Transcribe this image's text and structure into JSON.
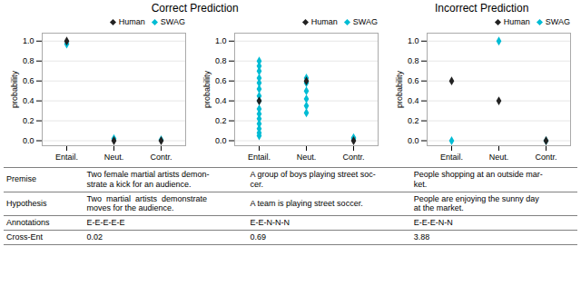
{
  "chart_data": [
    {
      "type": "scatter",
      "title": "Correct Prediction",
      "ylabel": "probability",
      "categories": [
        "Entail.",
        "Neut.",
        "Contr."
      ],
      "ylim": [
        -0.05,
        1.08
      ],
      "yticks": [
        {
          "value": 0,
          "label": "0.0"
        },
        0.2,
        0.4,
        0.6,
        0.8,
        {
          "value": 1,
          "label": "1.0"
        }
      ],
      "grid": true,
      "legend": "upper right",
      "series": [
        {
          "name": "Human",
          "color": "#222222",
          "marker": "diamond",
          "x": [
            "Entail.",
            "Neut.",
            "Contr."
          ],
          "values": [
            1.0,
            0.0,
            0.0
          ]
        },
        {
          "name": "SWAG",
          "color": "#00bcd4",
          "marker": "diamond",
          "x": [
            "Entail.",
            "Neut.",
            "Contr."
          ],
          "values": [
            0.97,
            0.02,
            0.01
          ]
        }
      ]
    },
    {
      "type": "scatter",
      "ylabel": "probability",
      "categories": [
        "Entail.",
        "Neut.",
        "Contr."
      ],
      "ylim": [
        -0.05,
        1.08
      ],
      "yticks": [
        {
          "value": 0,
          "label": "0.0"
        },
        0.2,
        0.4,
        0.6,
        0.8,
        {
          "value": 1,
          "label": "1.0"
        }
      ],
      "grid": true,
      "legend": "upper right",
      "series": [
        {
          "name": "Human",
          "color": "#222222",
          "marker": "diamond",
          "x": [
            "Entail.",
            "Neut.",
            "Contr."
          ],
          "values": [
            0.4,
            0.6,
            0.0
          ]
        },
        {
          "name": "SWAG",
          "color": "#00bcd4",
          "marker": "diamond",
          "x": [
            "Entail.",
            "Entail.",
            "Entail.",
            "Entail.",
            "Entail.",
            "Entail.",
            "Entail.",
            "Entail.",
            "Entail.",
            "Entail.",
            "Entail.",
            "Entail.",
            "Entail.",
            "Entail.",
            "Entail.",
            "Neut.",
            "Neut.",
            "Neut.",
            "Neut.",
            "Neut.",
            "Neut.",
            "Contr.",
            "Contr."
          ],
          "values": [
            0.05,
            0.08,
            0.12,
            0.17,
            0.22,
            0.27,
            0.32,
            0.4,
            0.45,
            0.52,
            0.58,
            0.63,
            0.7,
            0.75,
            0.8,
            0.28,
            0.35,
            0.42,
            0.5,
            0.58,
            0.63,
            0.02,
            0.03
          ]
        }
      ]
    },
    {
      "type": "scatter",
      "title": "Incorrect Prediction",
      "ylabel": "probability",
      "categories": [
        "Entail.",
        "Neut.",
        "Contr."
      ],
      "ylim": [
        -0.05,
        1.08
      ],
      "yticks": [
        {
          "value": 0,
          "label": "0.0"
        },
        0.2,
        0.4,
        0.6,
        0.8,
        {
          "value": 1,
          "label": "1.0"
        }
      ],
      "grid": true,
      "legend": "upper right",
      "series": [
        {
          "name": "Human",
          "color": "#222222",
          "marker": "diamond",
          "x": [
            "Entail.",
            "Neut.",
            "Contr."
          ],
          "values": [
            0.6,
            0.4,
            0.0
          ]
        },
        {
          "name": "SWAG",
          "color": "#00bcd4",
          "marker": "diamond",
          "x": [
            "Entail.",
            "Neut.",
            "Contr."
          ],
          "values": [
            0.0,
            1.0,
            0.0
          ]
        }
      ]
    },
    {
      "type": "table",
      "categories": [
        "Premise",
        "Hypothesis",
        "Annotations",
        "Cross-Ent"
      ],
      "columns": [
        [
          "Two female martial artists demon-\nstrate a kick for an audience.",
          "Two  martial  artists  demonstrate\nmoves for the audience.",
          "E-E-E-E-E",
          "0.02"
        ],
        [
          "A group of boys playing street soc-\ncer.",
          "A team is playing street soccer.",
          "E-E-N-N-N",
          "0.69"
        ],
        [
          "People shopping at an outside mar-\nket.",
          "People are enjoying the sunny day\nat the market.",
          "E-E-E-N-N",
          "3.88"
        ]
      ]
    }
  ]
}
